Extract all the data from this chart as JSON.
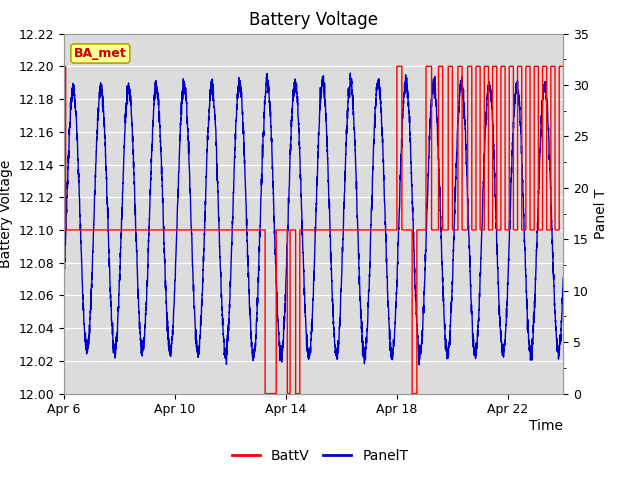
{
  "title": "Battery Voltage",
  "xlabel": "Time",
  "ylabel_left": "Battery Voltage",
  "ylabel_right": "Panel T",
  "xlim_start": 0,
  "xlim_end": 18,
  "ylim_left": [
    12.0,
    12.22
  ],
  "ylim_right": [
    0,
    35
  ],
  "xtick_labels": [
    "Apr 6",
    "Apr 10",
    "Apr 14",
    "Apr 18",
    "Apr 22"
  ],
  "xtick_positions": [
    0,
    4,
    8,
    12,
    16
  ],
  "ytick_left": [
    12.0,
    12.02,
    12.04,
    12.06,
    12.08,
    12.1,
    12.12,
    12.14,
    12.16,
    12.18,
    12.2,
    12.22
  ],
  "ytick_right": [
    0,
    5,
    10,
    15,
    20,
    25,
    30,
    35
  ],
  "batt_color": "#FF0000",
  "panel_color": "#0000CC",
  "bg_color": "#FFFFFF",
  "plot_bg_color": "#DCDCDC",
  "annotation_text": "BA_met",
  "annotation_bg": "#FFFF99",
  "annotation_border": "#AAAA00",
  "legend_batt": "BattV",
  "legend_panel": "PanelT",
  "title_fontsize": 12,
  "axis_label_fontsize": 10,
  "tick_fontsize": 9,
  "legend_fontsize": 10
}
